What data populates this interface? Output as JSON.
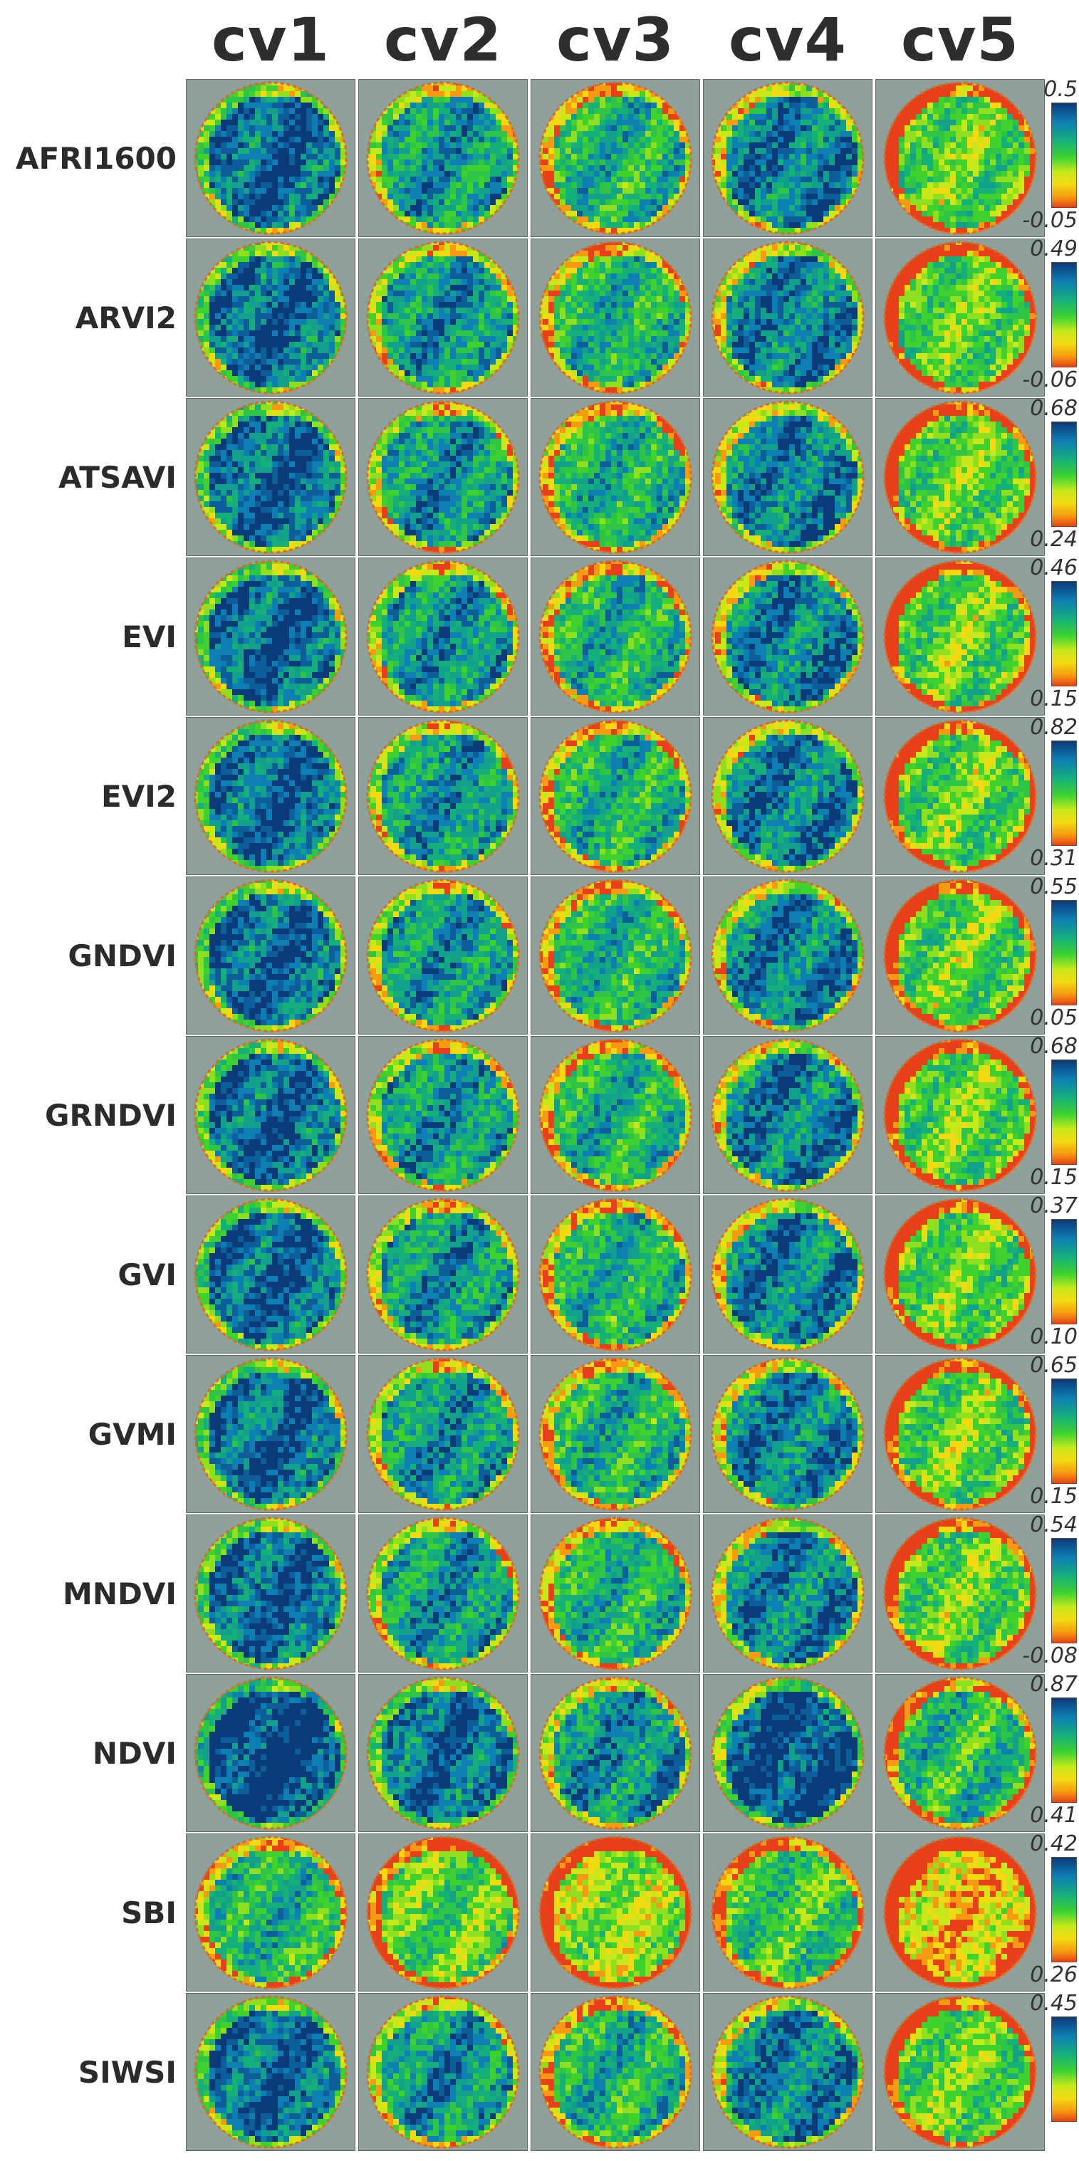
{
  "columns": [
    "cv1",
    "cv2",
    "cv3",
    "cv4",
    "cv5"
  ],
  "rows": [
    {
      "label": "AFRI1600",
      "max": "0.5",
      "min": "-0.05"
    },
    {
      "label": "ARVI2",
      "max": "0.49",
      "min": "-0.06"
    },
    {
      "label": "ATSAVI",
      "max": "0.68",
      "min": "0.24"
    },
    {
      "label": "EVI",
      "max": "0.46",
      "min": "0.15"
    },
    {
      "label": "EVI2",
      "max": "0.82",
      "min": "0.31"
    },
    {
      "label": "GNDVI",
      "max": "0.55",
      "min": "0.05"
    },
    {
      "label": "GRNDVI",
      "max": "0.68",
      "min": "0.15"
    },
    {
      "label": "GVI",
      "max": "0.37",
      "min": "0.10"
    },
    {
      "label": "GVMI",
      "max": "0.65",
      "min": "0.15"
    },
    {
      "label": "MNDVI",
      "max": "0.54",
      "min": "-0.08"
    },
    {
      "label": "NDVI",
      "max": "0.87",
      "min": "0.41"
    },
    {
      "label": "SBI",
      "max": "0.42",
      "min": "0.26"
    },
    {
      "label": "SIWSI",
      "max": "0.45",
      "min": ""
    }
  ],
  "colorscale": {
    "high": "#0a3a78",
    "mid_high": "#16b07a",
    "mid": "#3fd12e",
    "mid_low": "#f3d911",
    "low": "#e8401a",
    "background": "#8f9f9a"
  }
}
